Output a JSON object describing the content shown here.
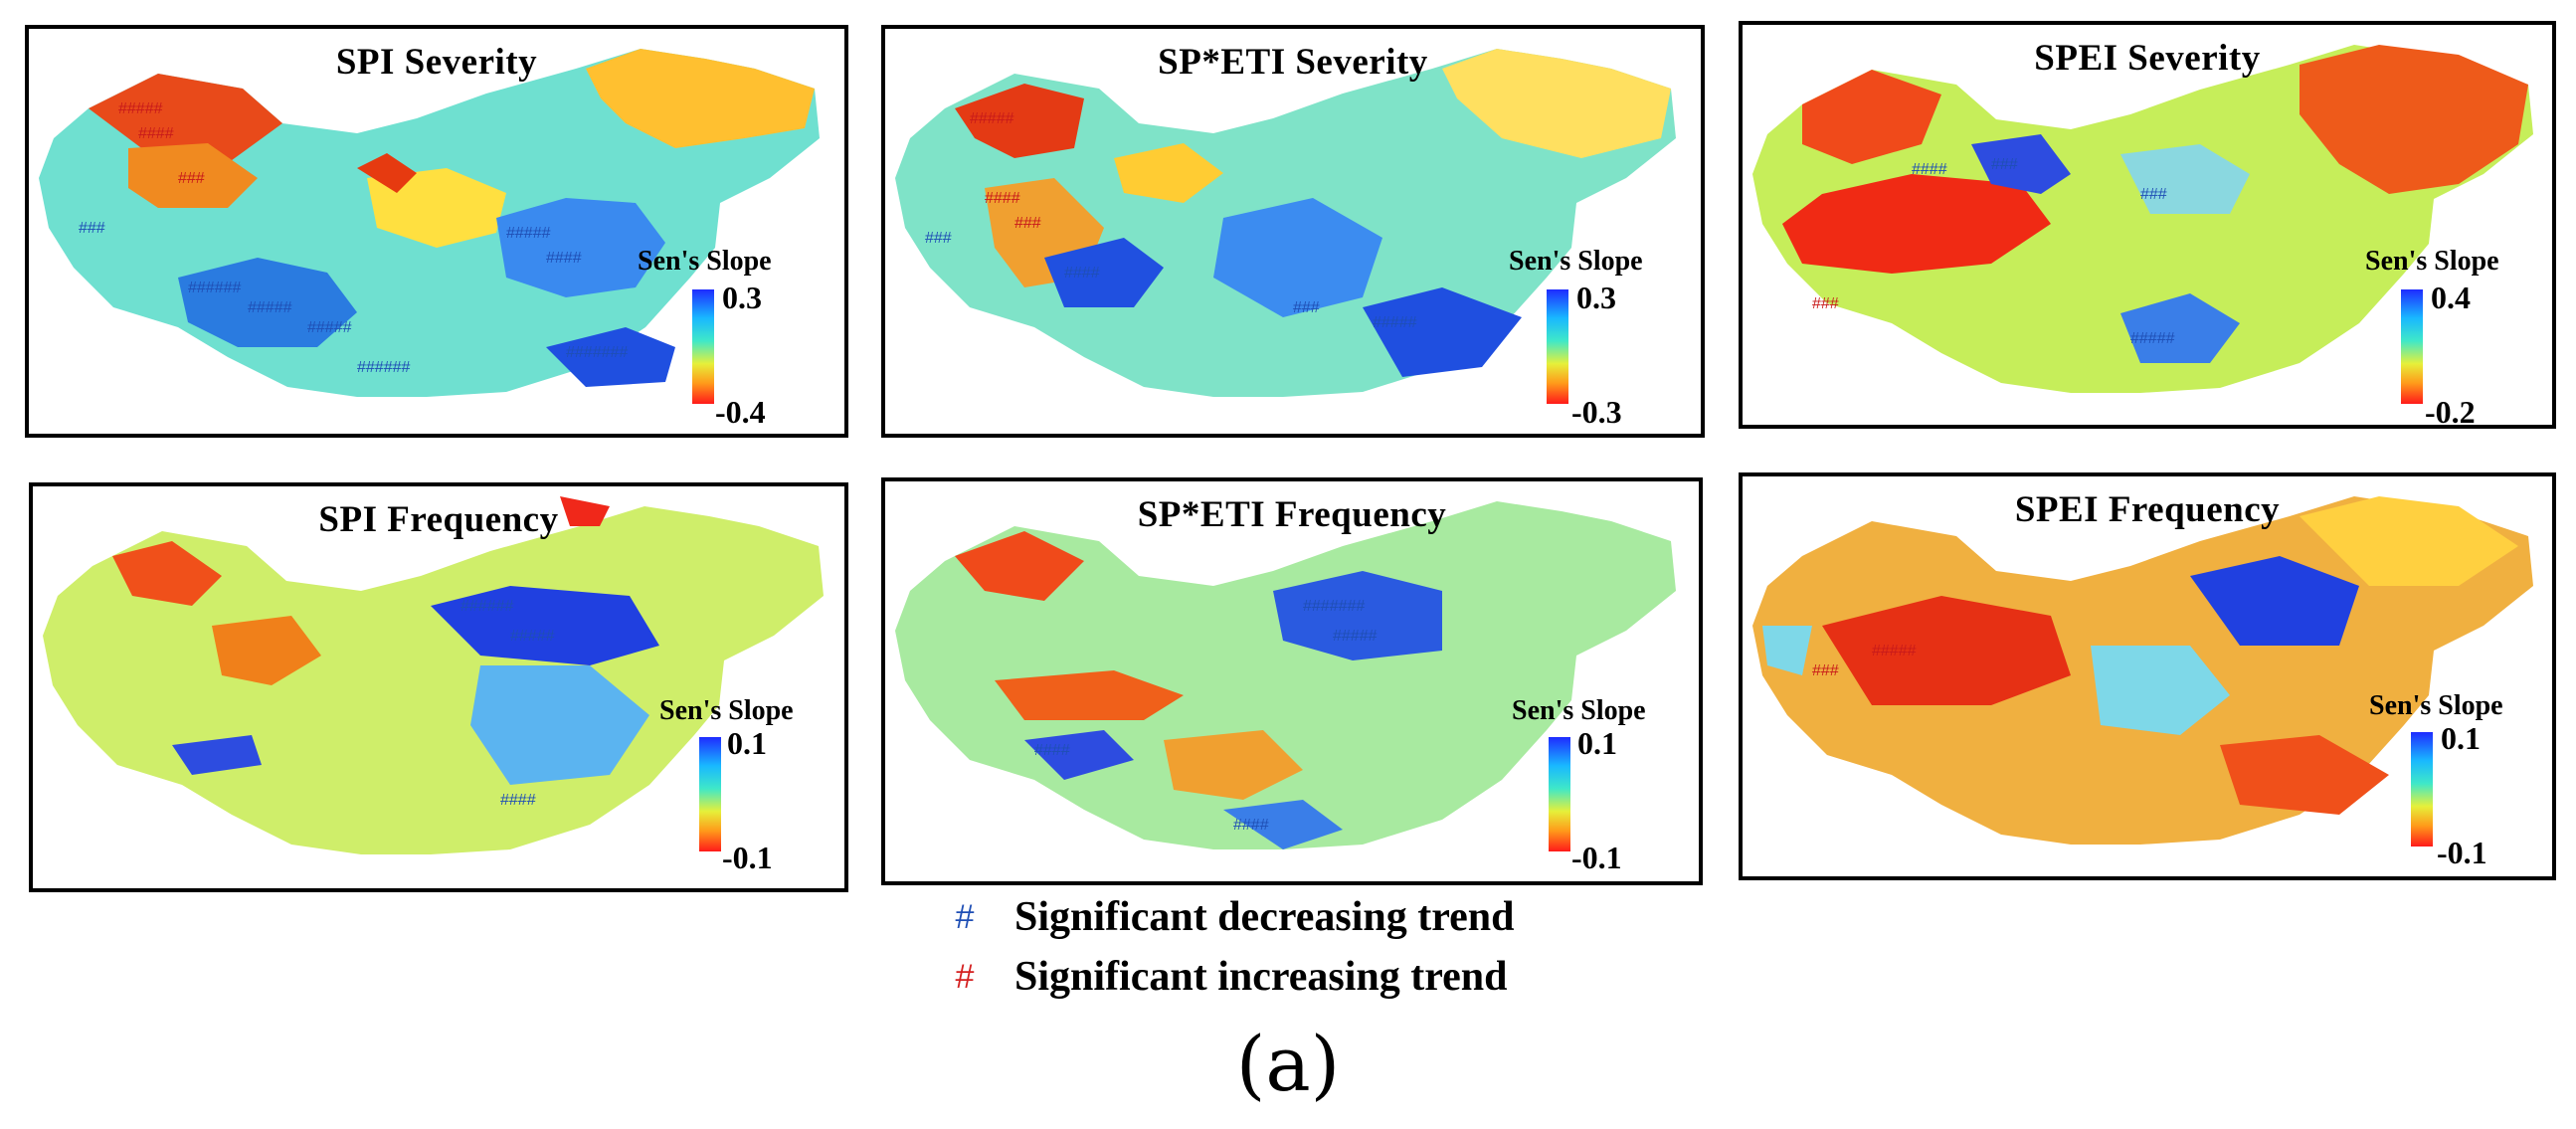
{
  "figure": {
    "caption": "(a)",
    "colors": {
      "decreasing": "#1f4fb5",
      "increasing": "#d42020"
    },
    "legend": {
      "symbol": "#",
      "decreasing_label": "Significant decreasing trend",
      "increasing_label": "Significant increasing trend"
    }
  },
  "panels": [
    {
      "id": "spi-severity",
      "title": "SPI Severity",
      "colorbar_label": "Sen's Slope",
      "max": "0.3",
      "min": "-0.4",
      "scale_max": 0.3,
      "scale_min": -0.4
    },
    {
      "id": "spetI-severity",
      "title": "SP*ETI Severity",
      "colorbar_label": "Sen's Slope",
      "max": "0.3",
      "min": "-0.3",
      "scale_max": 0.3,
      "scale_min": -0.3
    },
    {
      "id": "spei-severity",
      "title": "SPEI Severity",
      "colorbar_label": "Sen's Slope",
      "max": "0.4",
      "min": "-0.2",
      "scale_max": 0.4,
      "scale_min": -0.2
    },
    {
      "id": "spi-frequency",
      "title": "SPI Frequency",
      "colorbar_label": "Sen's Slope",
      "max": "0.1",
      "min": "-0.1",
      "scale_max": 0.1,
      "scale_min": -0.1
    },
    {
      "id": "speti-frequency",
      "title": "SP*ETI Frequency",
      "colorbar_label": "Sen's Slope",
      "max": "0.1",
      "min": "-0.1",
      "scale_max": 0.1,
      "scale_min": -0.1
    },
    {
      "id": "spei-frequency",
      "title": "SPEI Frequency",
      "colorbar_label": "Sen's Slope",
      "max": "0.1",
      "min": "-0.1",
      "scale_max": 0.1,
      "scale_min": -0.1
    }
  ]
}
